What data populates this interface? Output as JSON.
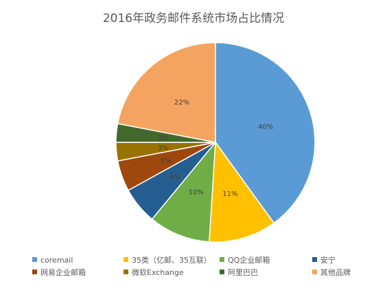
{
  "chart_data": {
    "type": "pie",
    "title": "2016年政务邮件系统市场占比情况",
    "slices": [
      {
        "name": "coremail",
        "value": 40,
        "label": "40%",
        "color": "#5b9bd5"
      },
      {
        "name": "35类（亿邮、35互联）",
        "value": 11,
        "label": "11%",
        "color": "#ffc000"
      },
      {
        "name": "QQ企业邮箱",
        "value": 10,
        "label": "10%",
        "color": "#70ad47"
      },
      {
        "name": "安宁",
        "value": 6,
        "label": "6%",
        "color": "#255e91"
      },
      {
        "name": "网易企业邮箱",
        "value": 5,
        "label": "5%",
        "color": "#9e480e"
      },
      {
        "name": "微软Exchange",
        "value": 3,
        "label": "3%",
        "color": "#997300"
      },
      {
        "name": "阿里巴巴",
        "value": 3,
        "label": "3%",
        "color": "#43682b"
      },
      {
        "name": "其他品牌",
        "value": 22,
        "label": "22%",
        "color": "#f4a460"
      }
    ],
    "legend_position": "bottom"
  }
}
